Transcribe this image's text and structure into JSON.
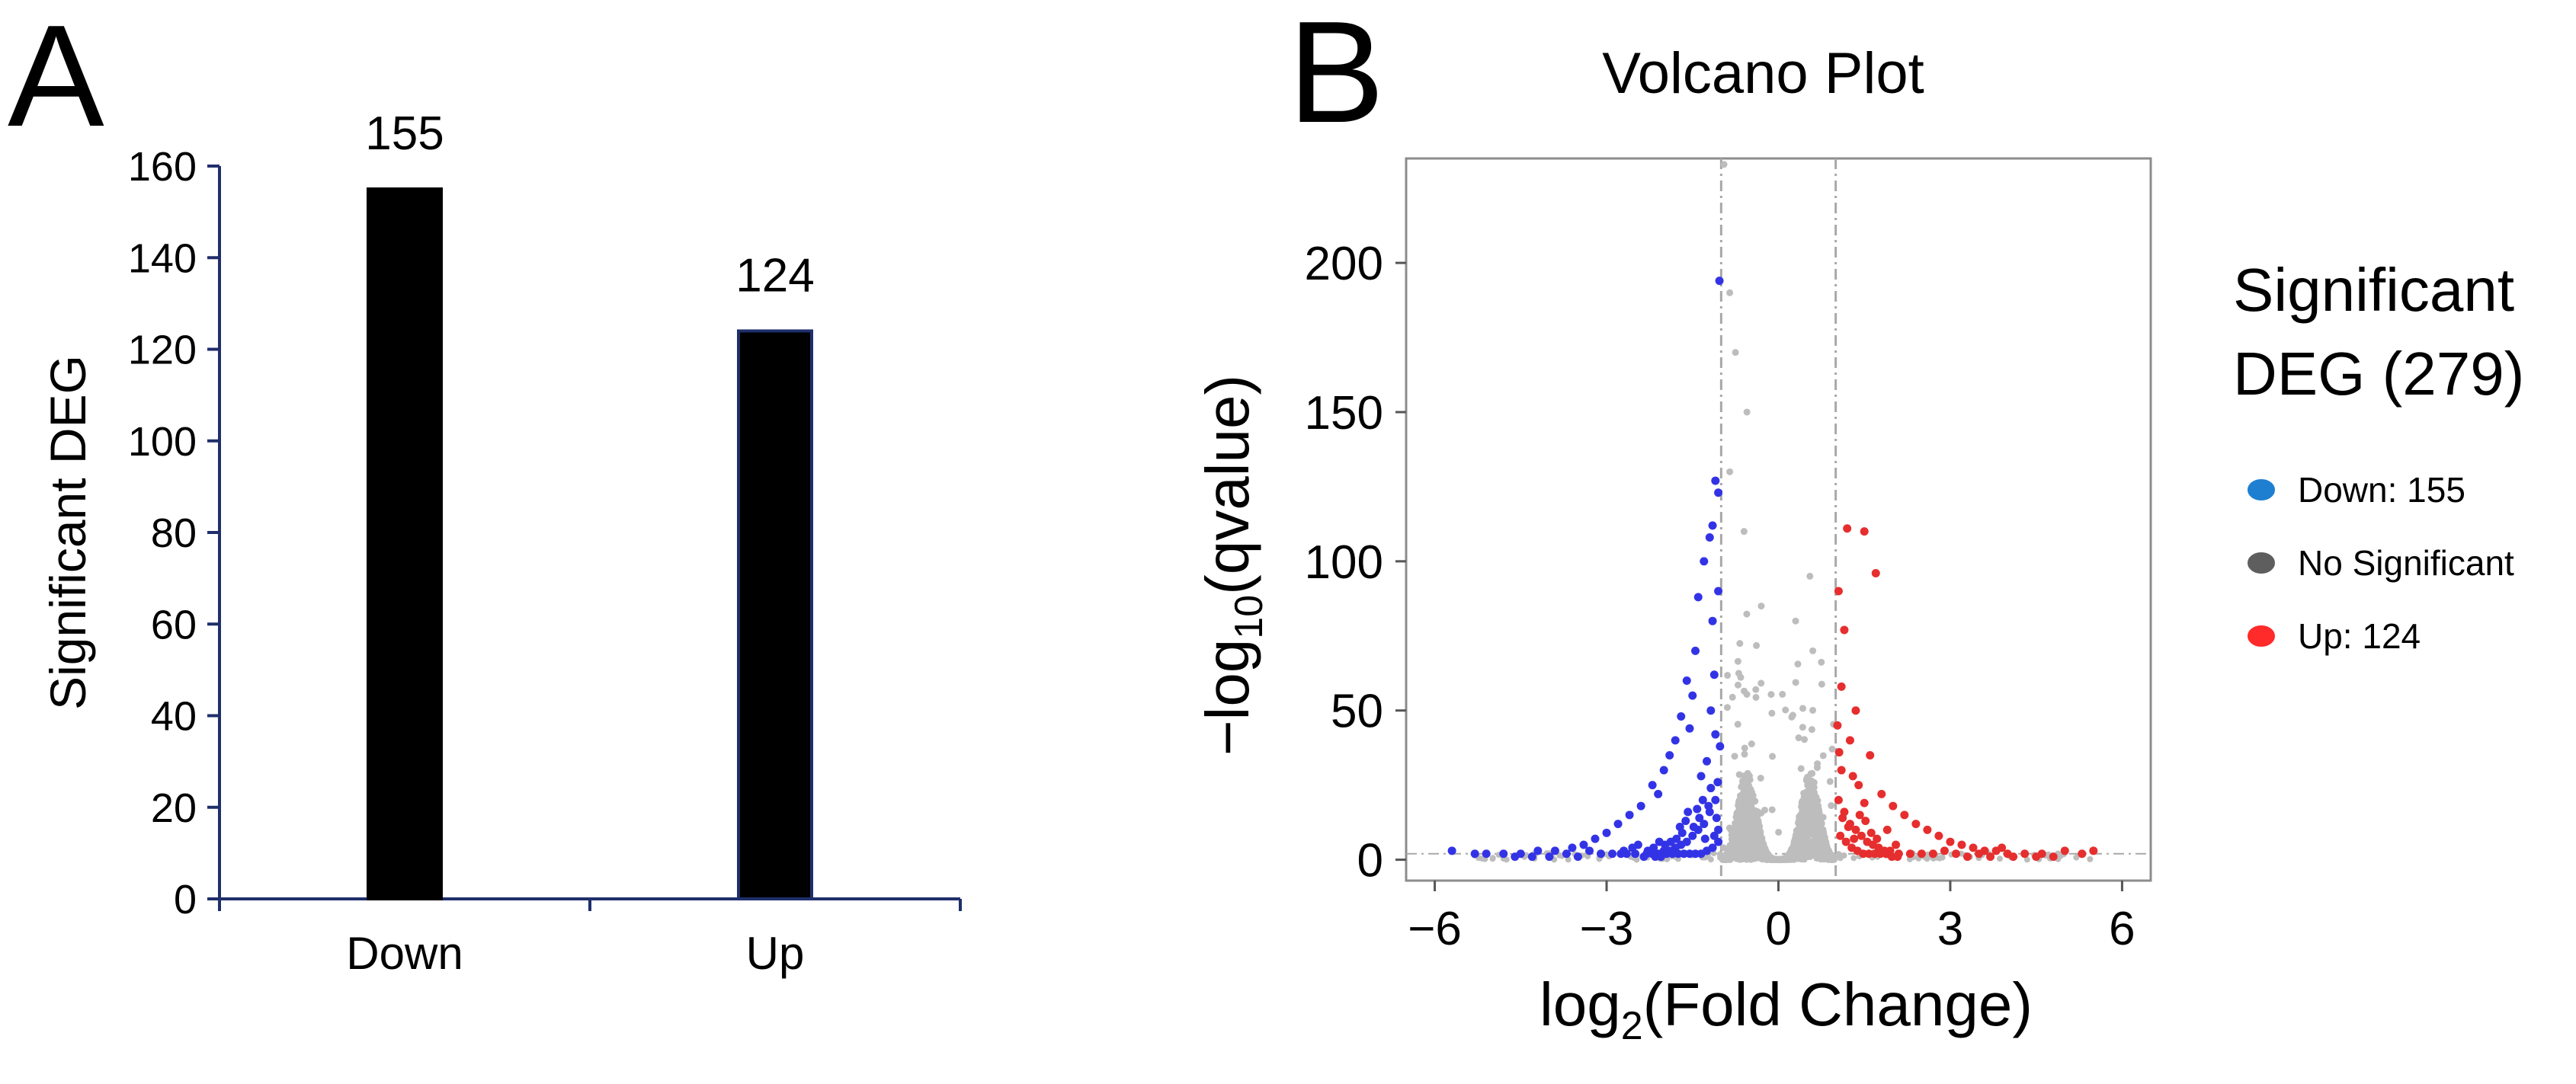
{
  "panels": [
    {
      "letter": "A"
    },
    {
      "letter": "B"
    }
  ],
  "colors": {
    "bar_fill": "#000000",
    "bar_outline_up": "#1f2f6b",
    "axis_a": "#1f2f6b",
    "down": "#3333e6",
    "up": "#e62e2e",
    "ns": "#bdbdbd",
    "legend_down": "#1e7fd1",
    "legend_ns": "#5e5e5e",
    "legend_up": "#ff2a2a"
  },
  "chart_data": [
    {
      "type": "bar",
      "title": "",
      "categories": [
        "Down",
        "Up"
      ],
      "values": [
        155,
        124
      ],
      "data_labels": [
        "155",
        "124"
      ],
      "xlabel": "",
      "ylabel": "Significant DEG",
      "ylim": [
        0,
        160
      ],
      "yticks": [
        0,
        20,
        40,
        60,
        80,
        100,
        120,
        140,
        160
      ],
      "ytick_labels": [
        "0",
        "20",
        "40",
        "60",
        "80",
        "100",
        "120",
        "140",
        "160"
      ]
    },
    {
      "type": "scatter",
      "title": "Volcano Plot",
      "xlabel_parts": [
        "log",
        "2",
        "(Fold Change)"
      ],
      "ylabel_parts": [
        "−log",
        "10",
        "(qvalue)"
      ],
      "xlim": [
        -6.5,
        6.5
      ],
      "ylim": [
        -7,
        235
      ],
      "xticks": [
        -6,
        -3,
        0,
        3,
        6
      ],
      "xtick_labels": [
        "−6",
        "−3",
        "0",
        "3",
        "6"
      ],
      "yticks": [
        0,
        50,
        100,
        150,
        200
      ],
      "ytick_labels": [
        "0",
        "50",
        "100",
        "150",
        "200"
      ],
      "thresholds_x": [
        -1,
        1
      ],
      "legend": {
        "title_lines": [
          "Significant",
          "DEG (279)"
        ],
        "position": "right",
        "entries": [
          {
            "label": "Down: 155",
            "group": "down"
          },
          {
            "label": "No Significant",
            "group": "ns"
          },
          {
            "label": "Up: 124",
            "group": "up"
          }
        ]
      },
      "series": [
        {
          "name": "Down",
          "group": "down",
          "points": [
            [
              -1.03,
              194
            ],
            [
              -1.1,
              127
            ],
            [
              -1.05,
              123
            ],
            [
              -1.15,
              112
            ],
            [
              -1.2,
              108
            ],
            [
              -1.05,
              90
            ],
            [
              -1.15,
              80
            ],
            [
              -1.12,
              62
            ],
            [
              -1.18,
              50
            ],
            [
              -1.1,
              42
            ],
            [
              -1.25,
              33
            ],
            [
              -1.3,
              100
            ],
            [
              -1.4,
              88
            ],
            [
              -1.45,
              70
            ],
            [
              -1.6,
              60
            ],
            [
              -1.5,
              55
            ],
            [
              -1.7,
              48
            ],
            [
              -1.55,
              44
            ],
            [
              -1.8,
              40
            ],
            [
              -1.9,
              35
            ],
            [
              -2.0,
              30
            ],
            [
              -2.2,
              25
            ],
            [
              -2.1,
              22
            ],
            [
              -1.35,
              28
            ],
            [
              -2.4,
              18
            ],
            [
              -2.6,
              15
            ],
            [
              -2.8,
              12
            ],
            [
              -3.0,
              9
            ],
            [
              -3.2,
              7
            ],
            [
              -3.4,
              5
            ],
            [
              -3.6,
              4
            ],
            [
              -3.9,
              3
            ],
            [
              -4.2,
              3
            ],
            [
              -4.5,
              2
            ],
            [
              -4.8,
              2
            ],
            [
              -5.1,
              2
            ],
            [
              -5.3,
              2
            ],
            [
              -5.7,
              3
            ],
            [
              -1.1,
              20
            ],
            [
              -1.2,
              16
            ],
            [
              -1.3,
              12
            ],
            [
              -1.4,
              10
            ],
            [
              -1.5,
              8
            ],
            [
              -1.6,
              6
            ],
            [
              -1.7,
              5
            ],
            [
              -1.8,
              4
            ],
            [
              -1.9,
              3
            ],
            [
              -2.0,
              3
            ],
            [
              -2.1,
              2
            ],
            [
              -2.2,
              2
            ],
            [
              -2.3,
              2
            ],
            [
              -2.5,
              2
            ],
            [
              -1.05,
              6
            ],
            [
              -1.15,
              4
            ],
            [
              -1.25,
              3
            ],
            [
              -1.35,
              2
            ],
            [
              -1.45,
              2
            ],
            [
              -1.55,
              2
            ],
            [
              -1.65,
              2
            ],
            [
              -1.75,
              2
            ],
            [
              -1.85,
              2
            ],
            [
              -1.95,
              2
            ],
            [
              -2.05,
              1
            ],
            [
              -2.15,
              1
            ],
            [
              -2.35,
              1
            ],
            [
              -2.7,
              3
            ],
            [
              -2.9,
              2
            ],
            [
              -3.1,
              2
            ],
            [
              -3.3,
              3
            ],
            [
              -3.5,
              1
            ],
            [
              -1.05,
              10
            ],
            [
              -1.08,
              14
            ],
            [
              -1.12,
              8
            ],
            [
              -1.22,
              18
            ],
            [
              -1.28,
              7
            ],
            [
              -1.38,
              14
            ],
            [
              -1.48,
              11
            ],
            [
              -1.58,
              16
            ],
            [
              -1.68,
              9
            ],
            [
              -1.78,
              7
            ],
            [
              -1.88,
              6
            ],
            [
              -1.98,
              5
            ],
            [
              -2.08,
              6
            ],
            [
              -2.18,
              4
            ],
            [
              -2.28,
              3
            ],
            [
              -2.45,
              5
            ],
            [
              -2.55,
              4
            ],
            [
              -2.65,
              2
            ],
            [
              -2.75,
              2
            ],
            [
              -3.7,
              2
            ],
            [
              -4.0,
              1
            ],
            [
              -4.3,
              1
            ],
            [
              -4.6,
              1
            ],
            [
              -1.02,
              38
            ],
            [
              -1.06,
              26
            ],
            [
              -1.18,
              24
            ],
            [
              -1.32,
              20
            ],
            [
              -1.42,
              17
            ],
            [
              -1.62,
              13
            ],
            [
              -1.72,
              11
            ]
          ]
        },
        {
          "name": "Up",
          "group": "up",
          "points": [
            [
              1.2,
              111
            ],
            [
              1.5,
              110
            ],
            [
              1.7,
              96
            ],
            [
              1.05,
              90
            ],
            [
              1.15,
              77
            ],
            [
              1.1,
              58
            ],
            [
              1.35,
              50
            ],
            [
              1.25,
              40
            ],
            [
              1.6,
              35
            ],
            [
              1.1,
              30
            ],
            [
              1.4,
              25
            ],
            [
              1.8,
              22
            ],
            [
              2.0,
              18
            ],
            [
              2.2,
              15
            ],
            [
              2.4,
              12
            ],
            [
              2.6,
              10
            ],
            [
              2.8,
              8
            ],
            [
              3.0,
              6
            ],
            [
              3.2,
              5
            ],
            [
              3.4,
              4
            ],
            [
              3.6,
              3
            ],
            [
              3.8,
              3
            ],
            [
              4.0,
              2
            ],
            [
              4.3,
              2
            ],
            [
              4.6,
              2
            ],
            [
              5.0,
              3
            ],
            [
              5.3,
              2
            ],
            [
              5.5,
              3
            ],
            [
              1.05,
              20
            ],
            [
              1.15,
              16
            ],
            [
              1.25,
              12
            ],
            [
              1.35,
              10
            ],
            [
              1.45,
              8
            ],
            [
              1.55,
              6
            ],
            [
              1.65,
              5
            ],
            [
              1.75,
              4
            ],
            [
              1.85,
              3
            ],
            [
              1.95,
              3
            ],
            [
              2.1,
              2
            ],
            [
              2.3,
              2
            ],
            [
              2.5,
              2
            ],
            [
              2.7,
              2
            ],
            [
              1.08,
              8
            ],
            [
              1.18,
              6
            ],
            [
              1.28,
              4
            ],
            [
              1.38,
              3
            ],
            [
              1.48,
              2
            ],
            [
              1.58,
              2
            ],
            [
              1.68,
              2
            ],
            [
              1.78,
              2
            ],
            [
              1.88,
              2
            ],
            [
              1.98,
              1
            ],
            [
              2.08,
              1
            ],
            [
              1.12,
              14
            ],
            [
              1.22,
              11
            ],
            [
              1.32,
              7
            ],
            [
              1.42,
              15
            ],
            [
              1.52,
              13
            ],
            [
              1.62,
              9
            ],
            [
              1.72,
              7
            ],
            [
              2.9,
              3
            ],
            [
              3.1,
              2
            ],
            [
              3.3,
              1
            ],
            [
              3.5,
              2
            ],
            [
              3.7,
              1
            ],
            [
              3.9,
              4
            ],
            [
              4.1,
              1
            ],
            [
              4.5,
              1
            ],
            [
              4.8,
              1
            ],
            [
              1.03,
              45
            ],
            [
              1.06,
              36
            ],
            [
              1.3,
              28
            ],
            [
              1.5,
              19
            ],
            [
              1.9,
              10
            ],
            [
              2.05,
              5
            ]
          ]
        }
      ]
    }
  ]
}
